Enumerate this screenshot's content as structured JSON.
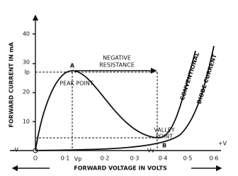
{
  "y_axis": {
    "label": "FORWARD CURRENT IN mA",
    "ticks": [
      "40",
      "30",
      "20",
      "10"
    ],
    "peak_current": "Ip"
  },
  "x_axis": {
    "label": "FORWARD VOLTAGE IN VOLTS",
    "negative": "-V",
    "positive": "+V",
    "origin": "O",
    "ticks": [
      "0·1",
      "0·2",
      "0·3",
      "0·4",
      "0·5",
      "0·6"
    ],
    "peak_voltage": "Vp",
    "valley_voltage": "Vv"
  },
  "annotations": {
    "peak_letter": "A",
    "peak": "PEAK POINT",
    "negative_resistance_1": "NEGATIVE",
    "negative_resistance_2": "RESISTANCE",
    "valley_letter": "B",
    "valley_1": "VALLEY",
    "valley_2": "POINT",
    "conventional_1": "CONVENTIONAL",
    "conventional_2": "DIODE CURRENT"
  }
}
